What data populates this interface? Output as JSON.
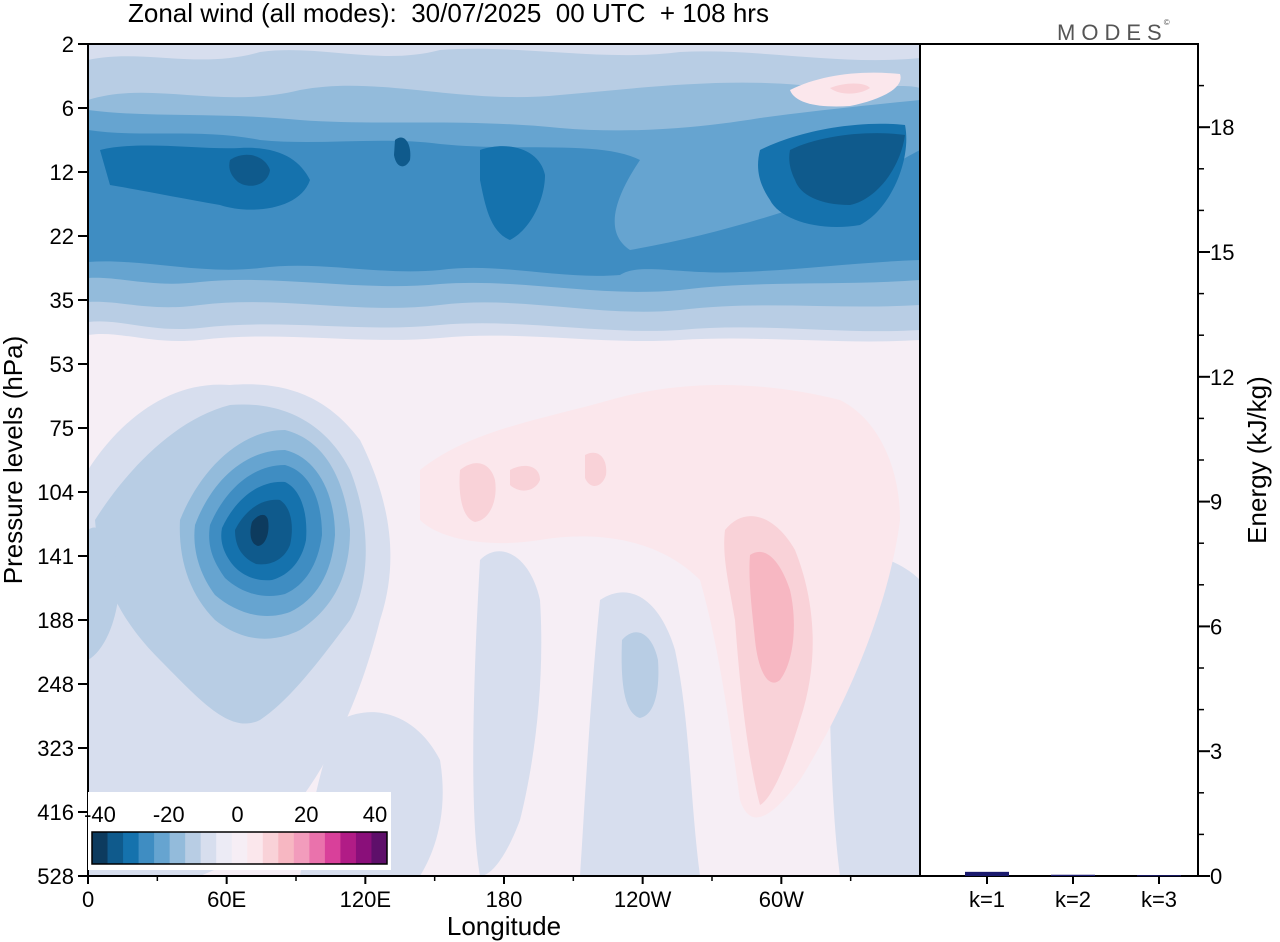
{
  "title": "Zonal wind (all modes):  30/07/2025  00 UTC  + 108 hrs",
  "logo": "MODES",
  "colors": {
    "negative": [
      "#0d3b5e",
      "#0f5a8c",
      "#1572ad",
      "#3f8dc2",
      "#66a4d0",
      "#93bbdb",
      "#b8cde4",
      "#d7deee",
      "#ecebf5"
    ],
    "neutral": "#f6eef5",
    "positive": [
      "#fbe7ec",
      "#f9d2d8",
      "#f7b7c2",
      "#f29cbc",
      "#ea72ac",
      "#d9409a",
      "#b11c86",
      "#8a0f7a",
      "#5e0f6a"
    ]
  },
  "chart_data": [
    {
      "type": "heatmap",
      "title": "Zonal wind (all modes):  30/07/2025  00 UTC  + 108 hrs",
      "xlabel": "Longitude",
      "ylabel": "Pressure levels (hPa)",
      "x_ticks": [
        "0",
        "60E",
        "120E",
        "180",
        "120W",
        "60W"
      ],
      "y_ticks": [
        "2",
        "6",
        "12",
        "22",
        "35",
        "53",
        "75",
        "104",
        "141",
        "188",
        "248",
        "323",
        "416",
        "528"
      ],
      "colorbar_ticks": [
        "-40",
        "-20",
        "0",
        "20",
        "40"
      ],
      "features": [
        {
          "description": "easterly band",
          "pressure_range_hPa": [
            6,
            35
          ],
          "value_range": [
            -35,
            -15
          ]
        },
        {
          "description": "easterly core near 70E",
          "pressure_hPa": 120,
          "value": -40
        },
        {
          "description": "westerly maximum near 60W",
          "pressure_hPa": 160,
          "value": 10
        },
        {
          "description": "weak westerlies 160E-120W",
          "pressure_range_hPa": [
            75,
            141
          ],
          "value": 5
        }
      ]
    },
    {
      "type": "bar",
      "ylabel": "Energy (kJ/kg)",
      "categories": [
        "k=1",
        "k=2",
        "k=3"
      ],
      "values": [
        0.1,
        0.03,
        0.02
      ],
      "ylim": [
        0,
        20
      ],
      "y_ticks": [
        "0",
        "3",
        "6",
        "9",
        "12",
        "15",
        "18"
      ]
    }
  ]
}
